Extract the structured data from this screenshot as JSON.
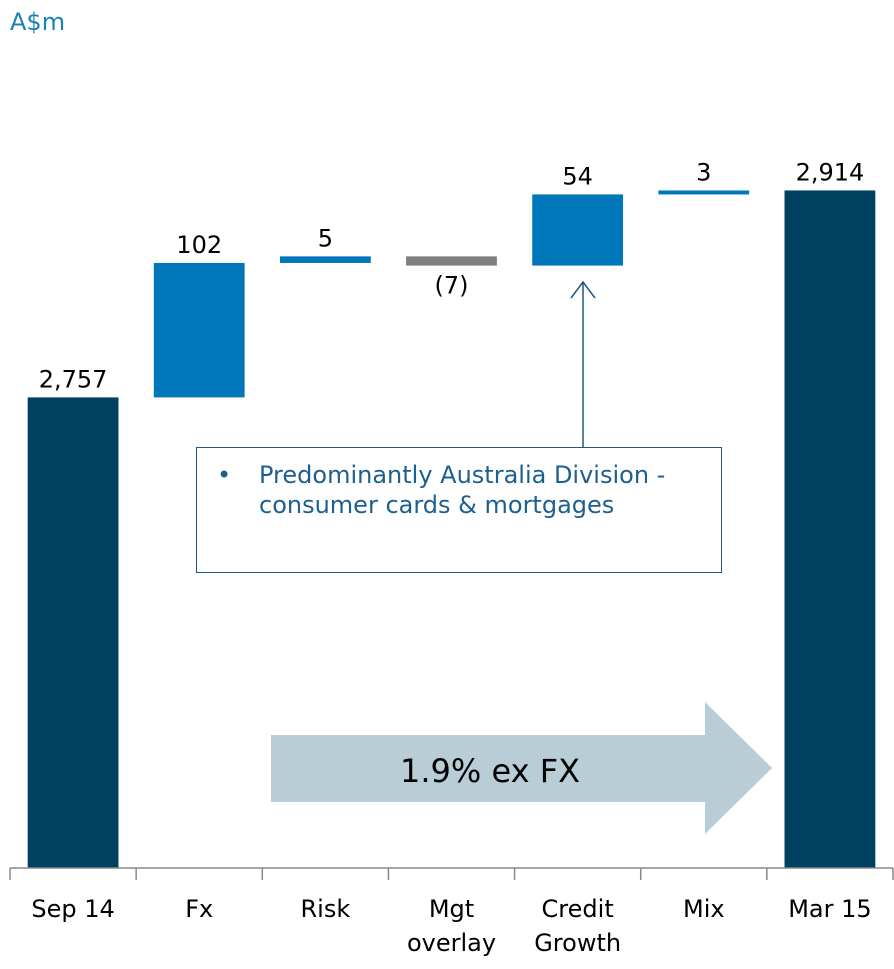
{
  "chart_data": {
    "type": "waterfall",
    "unit_label": "A$m",
    "categories": [
      "Sep 14",
      "Fx",
      "Risk",
      "Mgt overlay",
      "Credit Growth",
      "Mix",
      "Mar 15"
    ],
    "measure": [
      "total",
      "relative",
      "relative",
      "relative",
      "relative",
      "relative",
      "total"
    ],
    "values": [
      2757,
      102,
      5,
      -7,
      54,
      3,
      2914
    ],
    "value_labels": [
      "2,757",
      "102",
      "5",
      "(7)",
      "54",
      "3",
      "2,914"
    ],
    "colors": {
      "total": "#004060",
      "increase": "#0077bb",
      "decrease": "#808080"
    },
    "ylim": [
      2400,
      2950
    ],
    "annotations": {
      "box": "Predominantly Australia Division - consumer cards & mortgages",
      "arrow": "1.9% ex FX"
    }
  }
}
